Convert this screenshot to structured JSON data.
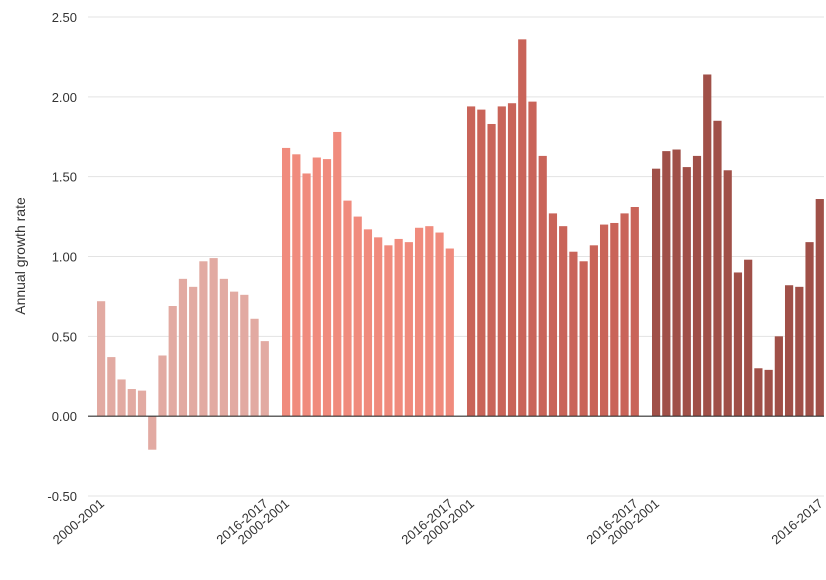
{
  "chart_data": {
    "type": "bar",
    "ylabel": "Annual growth rate",
    "ylim": [
      -0.5,
      2.5
    ],
    "yticks": [
      "2.50",
      "2.00",
      "1.50",
      "1.00",
      "0.50",
      "0.00",
      "-0.50"
    ],
    "ytick_values": [
      2.5,
      2.0,
      1.5,
      1.0,
      0.5,
      0.0,
      -0.5
    ],
    "grid": true,
    "legend": "none",
    "groups": [
      {
        "color": "#e2aaa2",
        "first_label": "2000-2001",
        "last_label": "2016-2017",
        "values": [
          0.72,
          0.37,
          0.23,
          0.17,
          0.16,
          -0.21,
          0.38,
          0.69,
          0.86,
          0.81,
          0.97,
          0.99,
          0.86,
          0.78,
          0.76,
          0.61,
          0.47
        ]
      },
      {
        "color": "#f08b7d",
        "first_label": "2000-2001",
        "last_label": "2016-2017",
        "values": [
          1.68,
          1.64,
          1.52,
          1.62,
          1.61,
          1.78,
          1.35,
          1.25,
          1.17,
          1.12,
          1.07,
          1.11,
          1.09,
          1.18,
          1.19,
          1.15,
          1.05
        ]
      },
      {
        "color": "#c96459",
        "first_label": "2000-2001",
        "last_label": "2016-2017",
        "values": [
          1.94,
          1.92,
          1.83,
          1.94,
          1.96,
          2.36,
          1.97,
          1.63,
          1.27,
          1.19,
          1.03,
          0.97,
          1.07,
          1.2,
          1.21,
          1.27,
          1.31
        ]
      },
      {
        "color": "#a05048",
        "first_label": "2000-2001",
        "last_label": "2016-2017",
        "values": [
          1.55,
          1.66,
          1.67,
          1.56,
          1.63,
          2.14,
          1.85,
          1.54,
          0.9,
          0.98,
          0.3,
          0.29,
          0.5,
          0.82,
          0.81,
          1.09,
          1.36
        ]
      }
    ]
  }
}
